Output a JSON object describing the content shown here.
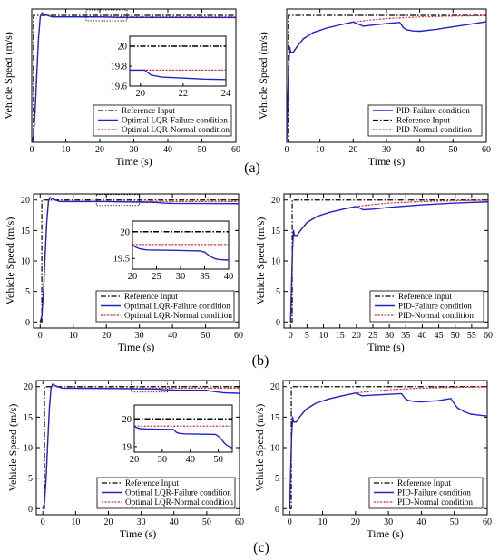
{
  "colors": {
    "reference": "#000000",
    "failure": "#2323c8",
    "normal": "#e8262b",
    "axis": "#000000"
  },
  "row_labels": [
    "(a)",
    "(b)",
    "(c)"
  ],
  "chart_data": [
    {
      "id": "a-lqr",
      "type": "line",
      "row": 0,
      "col": 0,
      "xlabel": "Time (s)",
      "ylabel": "Vehicle Speed (m/s)",
      "xlim": [
        0,
        60
      ],
      "ylim": [
        0,
        21
      ],
      "xticks": [
        0,
        10,
        20,
        30,
        40,
        50,
        60
      ],
      "yticks": [],
      "legend_position": "bottom-right",
      "legend": [
        "Reference Input",
        "Optimal LQR-Failure condition",
        "Optimal LQR-Normal condition"
      ],
      "series": [
        {
          "name": "Reference Input",
          "style": "reference",
          "x": [
            0,
            0.5,
            0.5,
            60
          ],
          "y": [
            0,
            0,
            20,
            20
          ]
        },
        {
          "name": "Optimal LQR-Failure condition",
          "style": "failure",
          "x": [
            0,
            0.5,
            1,
            1.5,
            2,
            2.5,
            3,
            4,
            6,
            20,
            25,
            30,
            60
          ],
          "y": [
            0,
            1,
            5,
            11,
            16.5,
            19.8,
            20.4,
            20.1,
            19.75,
            19.75,
            19.68,
            19.67,
            19.65
          ]
        },
        {
          "name": "Optimal LQR-Normal condition",
          "style": "normal",
          "x": [
            0,
            0.5,
            1,
            1.5,
            2,
            2.5,
            3,
            4,
            6,
            60
          ],
          "y": [
            0,
            1,
            5,
            11,
            16.5,
            19.8,
            20.4,
            20.1,
            19.76,
            19.76
          ]
        }
      ],
      "zoom_box": {
        "x": [
          16,
          28
        ]
      },
      "inset": {
        "xlim": [
          19.5,
          24
        ],
        "ylim": [
          19.6,
          20.1
        ],
        "xticks": [
          20,
          22,
          24
        ],
        "yticks": [
          19.6,
          19.8,
          20.0
        ],
        "series": [
          {
            "style": "reference",
            "x": [
              19.5,
              24
            ],
            "y": [
              20,
              20
            ]
          },
          {
            "style": "normal",
            "x": [
              19.5,
              24
            ],
            "y": [
              19.76,
              19.76
            ]
          },
          {
            "style": "failure",
            "x": [
              19.5,
              20.2,
              20.5,
              21,
              22,
              23,
              24
            ],
            "y": [
              19.76,
              19.76,
              19.71,
              19.69,
              19.68,
              19.67,
              19.665
            ]
          }
        ]
      }
    },
    {
      "id": "a-pid",
      "type": "line",
      "row": 0,
      "col": 1,
      "xlabel": "Time (s)",
      "ylabel": "Vehicle Speed (m/s)",
      "xlim": [
        0,
        60
      ],
      "ylim": [
        0,
        21
      ],
      "xticks": [
        0,
        10,
        20,
        30,
        40,
        50,
        60
      ],
      "yticks": [],
      "legend_position": "bottom-right",
      "legend": [
        "PID-Failure condition",
        "Reference Input",
        "PID-Normal condition"
      ],
      "series": [
        {
          "name": "Reference Input",
          "style": "reference",
          "x": [
            0,
            0.5,
            0.5,
            60
          ],
          "y": [
            0,
            0,
            20,
            20
          ]
        },
        {
          "name": "PID-Failure condition",
          "style": "failure",
          "x": [
            0,
            0.3,
            0.6,
            0.9,
            1.2,
            2,
            3,
            5,
            8,
            12,
            16,
            20,
            23,
            27,
            31,
            34,
            35,
            36,
            38,
            40,
            45,
            50,
            55,
            60
          ],
          "y": [
            0,
            6,
            12,
            15,
            14.2,
            14.2,
            15,
            16.3,
            17.3,
            18,
            18.5,
            18.95,
            18.3,
            18.55,
            18.75,
            18.9,
            18.1,
            17.75,
            17.55,
            17.5,
            17.8,
            18.2,
            18.6,
            19
          ]
        },
        {
          "name": "PID-Normal condition",
          "style": "normal",
          "x": [
            0,
            0.3,
            0.6,
            0.9,
            1.2,
            2,
            3,
            5,
            8,
            12,
            16,
            20,
            25,
            30,
            40,
            50,
            60
          ],
          "y": [
            0,
            6,
            12,
            15,
            14.2,
            14.2,
            15,
            16.3,
            17.3,
            18,
            18.5,
            18.95,
            19.25,
            19.5,
            19.75,
            19.88,
            19.95
          ]
        }
      ]
    },
    {
      "id": "b-lqr",
      "type": "line",
      "row": 1,
      "col": 0,
      "xlabel": "Time (s)",
      "ylabel": "Vehicle Speed (m/s)",
      "xlim": [
        -2,
        60
      ],
      "ylim": [
        -1,
        21
      ],
      "xticks": [
        0,
        10,
        20,
        30,
        40,
        50,
        60
      ],
      "yticks": [
        0,
        5,
        10,
        15,
        20
      ],
      "legend_position": "bottom-right",
      "legend": [
        "Reference Input",
        "Optimal LQR-Failure condition",
        "Optimal LQR-Normal condition"
      ],
      "series": [
        {
          "name": "Reference Input",
          "style": "reference",
          "x": [
            0,
            0.5,
            0.5,
            60
          ],
          "y": [
            0,
            0,
            20,
            20
          ]
        },
        {
          "name": "Optimal LQR-Failure condition",
          "style": "failure",
          "x": [
            0,
            0.5,
            1,
            1.5,
            2,
            2.5,
            3,
            4,
            6,
            20,
            35,
            37,
            40,
            60
          ],
          "y": [
            0,
            1,
            5,
            11,
            16.5,
            19.8,
            20.4,
            20.1,
            19.75,
            19.74,
            19.62,
            19.5,
            19.45,
            19.4
          ]
        },
        {
          "name": "Optimal LQR-Normal condition",
          "style": "normal",
          "x": [
            0,
            0.5,
            1,
            1.5,
            2,
            2.5,
            3,
            4,
            6,
            60
          ],
          "y": [
            0,
            1,
            5,
            11,
            16.5,
            19.8,
            20.4,
            20.1,
            19.76,
            19.76
          ]
        }
      ],
      "zoom_box": {
        "x": [
          17,
          30
        ]
      },
      "inset": {
        "xlim": [
          20,
          40
        ],
        "ylim": [
          19.3,
          20.2
        ],
        "xticks": [
          20,
          25,
          30,
          35,
          40
        ],
        "yticks": [
          19.5,
          20.0
        ],
        "series": [
          {
            "style": "reference",
            "x": [
              20,
              40
            ],
            "y": [
              20,
              20
            ]
          },
          {
            "style": "normal",
            "x": [
              20,
              40
            ],
            "y": [
              19.76,
              19.76
            ]
          },
          {
            "style": "failure",
            "x": [
              20,
              20.5,
              21.5,
              23,
              30,
              34,
              35,
              36,
              37,
              38,
              40
            ],
            "y": [
              19.76,
              19.72,
              19.68,
              19.66,
              19.65,
              19.64,
              19.62,
              19.55,
              19.5,
              19.48,
              19.47
            ]
          }
        ]
      }
    },
    {
      "id": "b-pid",
      "type": "line",
      "row": 1,
      "col": 1,
      "xlabel": "Time (s)",
      "ylabel": "Vehicle Speed (m/s)",
      "xlim": [
        -2,
        60
      ],
      "ylim": [
        -1,
        21
      ],
      "xticks": [
        0,
        5,
        10,
        15,
        20,
        25,
        30,
        35,
        40,
        45,
        50,
        55,
        60
      ],
      "yticks": [
        0,
        5,
        10,
        15,
        20
      ],
      "legend_position": "bottom-right",
      "legend": [
        "Reference Input",
        "PID-Failure condition",
        "PID-Normal condition"
      ],
      "series": [
        {
          "name": "Reference Input",
          "style": "reference",
          "x": [
            0,
            0.5,
            0.5,
            60
          ],
          "y": [
            0,
            0,
            20,
            20
          ]
        },
        {
          "name": "PID-Failure condition",
          "style": "failure",
          "x": [
            0,
            0.3,
            0.6,
            0.9,
            1.2,
            2,
            3,
            5,
            8,
            12,
            16,
            20,
            22,
            25,
            30,
            40,
            50,
            60
          ],
          "y": [
            0,
            6,
            12,
            15,
            14.2,
            14.2,
            15,
            16.3,
            17.3,
            18,
            18.5,
            18.95,
            18.4,
            18.5,
            18.8,
            19.2,
            19.5,
            19.7
          ]
        },
        {
          "name": "PID-Normal condition",
          "style": "normal",
          "x": [
            0,
            0.3,
            0.6,
            0.9,
            1.2,
            2,
            3,
            5,
            8,
            12,
            16,
            20,
            25,
            30,
            40,
            50,
            60
          ],
          "y": [
            0,
            6,
            12,
            15,
            14.2,
            14.2,
            15,
            16.3,
            17.3,
            18,
            18.5,
            18.95,
            19.25,
            19.5,
            19.75,
            19.88,
            19.95
          ]
        }
      ]
    },
    {
      "id": "c-lqr",
      "type": "line",
      "row": 2,
      "col": 0,
      "xlabel": "Time (s)",
      "ylabel": "Vehicle Speed (m/s)",
      "xlim": [
        -2,
        60
      ],
      "ylim": [
        -1,
        21
      ],
      "xticks": [
        0,
        10,
        20,
        30,
        40,
        50,
        60
      ],
      "yticks": [
        0,
        5,
        10,
        15,
        20
      ],
      "legend_position": "bottom-right",
      "legend": [
        "Reference Input",
        "Optimal LQR-Failure condition",
        "Optimal LQR-Normal condition"
      ],
      "series": [
        {
          "name": "Reference Input",
          "style": "reference",
          "x": [
            0,
            0.5,
            0.5,
            60
          ],
          "y": [
            0,
            0,
            20,
            20
          ]
        },
        {
          "name": "Optimal LQR-Failure condition",
          "style": "failure",
          "x": [
            0,
            0.5,
            1,
            1.5,
            2,
            2.5,
            3,
            4,
            6,
            20,
            35,
            37,
            40,
            50,
            52,
            55,
            60
          ],
          "y": [
            0,
            1,
            5,
            11,
            16.5,
            19.8,
            20.4,
            20.1,
            19.75,
            19.7,
            19.6,
            19.5,
            19.45,
            19.4,
            19.2,
            19.0,
            18.9
          ]
        },
        {
          "name": "Optimal LQR-Normal condition",
          "style": "normal",
          "x": [
            0,
            0.5,
            1,
            1.5,
            2,
            2.5,
            3,
            4,
            6,
            60
          ],
          "y": [
            0,
            1,
            5,
            11,
            16.5,
            19.8,
            20.4,
            20.1,
            19.76,
            19.76
          ]
        }
      ],
      "zoom_box": {
        "x": [
          27,
          38
        ]
      },
      "inset": {
        "xlim": [
          20,
          55
        ],
        "ylim": [
          18.8,
          20.5
        ],
        "xticks": [
          20,
          30,
          40,
          50
        ],
        "yticks": [
          19,
          20
        ],
        "series": [
          {
            "style": "reference",
            "x": [
              20,
              55
            ],
            "y": [
              20,
              20
            ]
          },
          {
            "style": "normal",
            "x": [
              20,
              55
            ],
            "y": [
              19.74,
              19.74
            ]
          },
          {
            "style": "failure",
            "x": [
              20,
              21,
              22,
              24,
              34,
              35,
              36,
              38,
              49,
              50,
              51,
              52,
              53,
              55
            ],
            "y": [
              19.74,
              19.68,
              19.65,
              19.64,
              19.62,
              19.52,
              19.48,
              19.46,
              19.44,
              19.38,
              19.28,
              19.15,
              19.05,
              18.95
            ]
          }
        ]
      }
    },
    {
      "id": "c-pid",
      "type": "line",
      "row": 2,
      "col": 1,
      "xlabel": "Time (s)",
      "ylabel": "Vehicle Speed (m/s)",
      "xlim": [
        -2,
        60
      ],
      "ylim": [
        -1,
        21
      ],
      "xticks": [
        0,
        10,
        20,
        30,
        40,
        50,
        60
      ],
      "yticks": [
        0,
        5,
        10,
        15,
        20
      ],
      "legend_position": "bottom-right",
      "legend": [
        "Reference Input",
        "PID-Failure condition",
        "PID-Normal condition"
      ],
      "series": [
        {
          "name": "Reference Input",
          "style": "reference",
          "x": [
            0,
            0.5,
            0.5,
            60
          ],
          "y": [
            0,
            0,
            20,
            20
          ]
        },
        {
          "name": "PID-Failure condition",
          "style": "failure",
          "x": [
            0,
            0.3,
            0.6,
            0.9,
            1.2,
            2,
            3,
            5,
            8,
            12,
            16,
            20,
            22,
            25,
            30,
            34,
            35,
            36,
            38,
            40,
            45,
            49,
            50,
            51,
            53,
            55,
            58,
            60
          ],
          "y": [
            0,
            6,
            12,
            15,
            14.2,
            14.2,
            15,
            16.3,
            17.3,
            18,
            18.5,
            18.95,
            18.5,
            18.6,
            18.75,
            18.85,
            18.1,
            17.75,
            17.55,
            17.5,
            17.7,
            18.05,
            17.2,
            16.5,
            15.9,
            15.5,
            15.3,
            15.2
          ]
        },
        {
          "name": "PID-Normal condition",
          "style": "normal",
          "x": [
            0,
            0.3,
            0.6,
            0.9,
            1.2,
            2,
            3,
            5,
            8,
            12,
            16,
            20,
            25,
            30,
            40,
            50,
            60
          ],
          "y": [
            0,
            6,
            12,
            15,
            14.2,
            14.2,
            15,
            16.3,
            17.3,
            18,
            18.5,
            18.95,
            19.25,
            19.5,
            19.75,
            19.88,
            19.95
          ]
        }
      ]
    }
  ]
}
